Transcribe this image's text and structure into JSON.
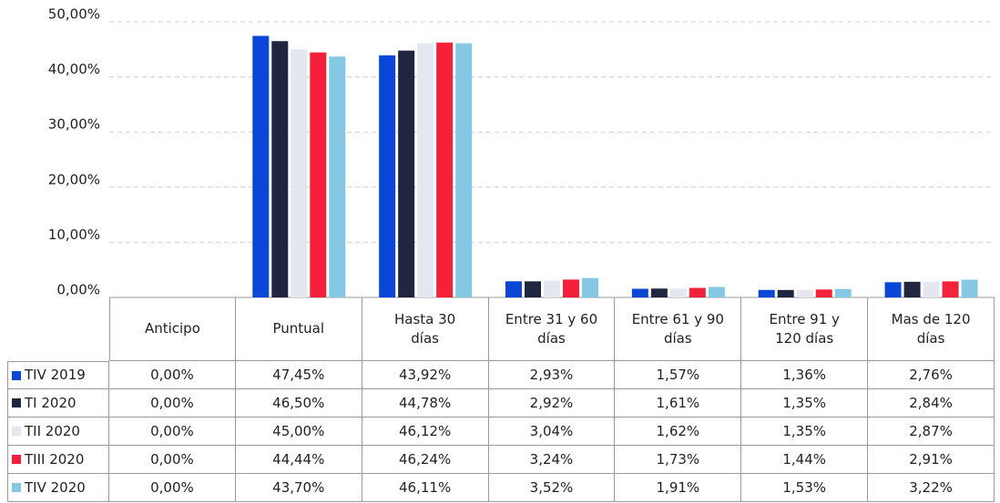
{
  "chart_data": {
    "type": "bar",
    "categories": [
      "Anticipo",
      "Puntual",
      "Hasta 30 días",
      "Entre 31 y 60 días",
      "Entre 61 y 90 días",
      "Entre 91 y 120 días",
      "Mas de 120 días"
    ],
    "series": [
      {
        "name": "TIV 2019",
        "color": "#0a47d6",
        "values": [
          0,
          47.45,
          43.92,
          2.93,
          1.57,
          1.36,
          2.76
        ],
        "value_labels": [
          "0,00%",
          "47,45%",
          "43,92%",
          "2,93%",
          "1,57%",
          "1,36%",
          "2,76%"
        ]
      },
      {
        "name": "TI 2020",
        "color": "#20263f",
        "values": [
          0,
          46.5,
          44.78,
          2.92,
          1.61,
          1.35,
          2.84
        ],
        "value_labels": [
          "0,00%",
          "46,50%",
          "44,78%",
          "2,92%",
          "1,61%",
          "1,35%",
          "2,84%"
        ]
      },
      {
        "name": "TII 2020",
        "color": "#e4e6f0",
        "values": [
          0,
          45.0,
          46.12,
          3.04,
          1.62,
          1.35,
          2.87
        ],
        "value_labels": [
          "0,00%",
          "45,00%",
          "46,12%",
          "3,04%",
          "1,62%",
          "1,35%",
          "2,87%"
        ]
      },
      {
        "name": "TIII 2020",
        "color": "#f5203a",
        "values": [
          0,
          44.44,
          46.24,
          3.24,
          1.73,
          1.44,
          2.91
        ],
        "value_labels": [
          "0,00%",
          "44,44%",
          "46,24%",
          "3,24%",
          "1,73%",
          "1,44%",
          "2,91%"
        ]
      },
      {
        "name": "TIV 2020",
        "color": "#85c8e4",
        "values": [
          0,
          43.7,
          46.11,
          3.52,
          1.91,
          1.53,
          3.22
        ],
        "value_labels": [
          "0,00%",
          "43,70%",
          "46,11%",
          "3,52%",
          "1,91%",
          "1,53%",
          "3,22%"
        ]
      }
    ],
    "ylim": [
      0,
      50
    ],
    "yticks": [
      {
        "value": 0,
        "label": "0,00%"
      },
      {
        "value": 10,
        "label": "10,00%"
      },
      {
        "value": 20,
        "label": "20,00%"
      },
      {
        "value": 30,
        "label": "30,00%"
      },
      {
        "value": 40,
        "label": "40,00%"
      },
      {
        "value": 50,
        "label": "50,00%"
      }
    ],
    "grid": true
  }
}
